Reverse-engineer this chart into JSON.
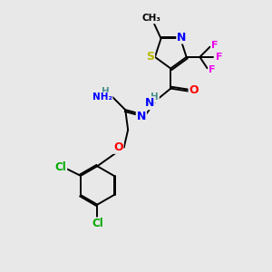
{
  "bg_color": "#e8e8e8",
  "atom_colors": {
    "S": "#b8b800",
    "N": "#0000ff",
    "O": "#ff0000",
    "F": "#ee00ee",
    "Cl": "#00aa00",
    "C": "#000000",
    "H": "#4a9090"
  },
  "bond_color": "#000000",
  "bond_width": 1.4,
  "font_size": 8.5
}
